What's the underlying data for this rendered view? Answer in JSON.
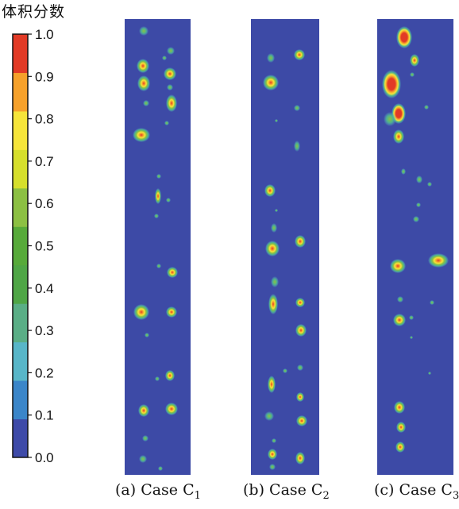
{
  "colorbar": {
    "title": "体积分数",
    "ticks": [
      "0.0",
      "0.1",
      "0.2",
      "0.3",
      "0.4",
      "0.5",
      "0.6",
      "0.7",
      "0.8",
      "0.9",
      "1.0"
    ],
    "colors": [
      "#3e4aa8",
      "#3b86c9",
      "#58b6c8",
      "#5aae86",
      "#4fa646",
      "#57aa3a",
      "#8cc043",
      "#d6df2c",
      "#f6e53a",
      "#f6a12b",
      "#e23a26"
    ]
  },
  "panels": [
    {
      "label_prefix": "(a) Case C",
      "label_sub": "1"
    },
    {
      "label_prefix": "(b) Case C",
      "label_sub": "2"
    },
    {
      "label_prefix": "(c) Case C",
      "label_sub": "3"
    }
  ],
  "background_color": "#3d4aa6"
}
